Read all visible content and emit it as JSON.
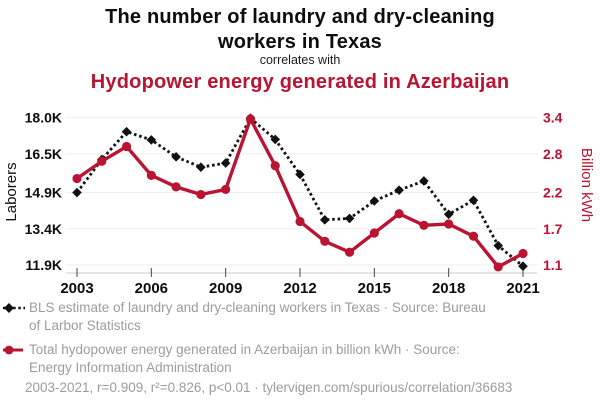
{
  "title": {
    "line1": "The number of laundry and dry-cleaning",
    "line2": "workers in Texas",
    "connector": "correlates with",
    "subtitle": "Hydopower energy generated in Azerbaijan"
  },
  "colors": {
    "accent_red": "#b91432",
    "series_black": "#111111",
    "legend_gray": "#9c9c9c",
    "gridline": "#ededed",
    "axis_line": "#cccccc",
    "tick": "#444444"
  },
  "chart_data": {
    "type": "line",
    "x": [
      2003,
      2004,
      2005,
      2006,
      2007,
      2008,
      2009,
      2010,
      2011,
      2012,
      2013,
      2014,
      2015,
      2016,
      2017,
      2018,
      2019,
      2020,
      2021
    ],
    "x_ticks": [
      2003,
      2006,
      2009,
      2012,
      2015,
      2018,
      2021
    ],
    "x_tick_labels": [
      "2003",
      "2006",
      "2009",
      "2012",
      "2015",
      "2018",
      "2021"
    ],
    "left_axis": {
      "label": "Laborers",
      "unit": "thousands of workers",
      "tick_labels": [
        "18.0K",
        "16.5K",
        "14.9K",
        "13.4K",
        "11.9K"
      ],
      "tick_values": [
        18.0,
        16.5,
        14.9,
        13.4,
        11.9
      ],
      "range": [
        11.9,
        18.0
      ]
    },
    "right_axis": {
      "label": "Billion kWh",
      "tick_labels": [
        "3.4",
        "2.8",
        "2.2",
        "1.7",
        "1.1"
      ],
      "range": [
        1.1,
        3.4
      ]
    },
    "grid": "horizontal-only",
    "legend_position": "bottom",
    "series": [
      {
        "name": "BLS estimate of laundry and dry-cleaning workers in Texas",
        "axis": "left",
        "style": "dotted-diamond",
        "color": "#111111",
        "values": [
          14.9,
          16.27,
          17.42,
          17.08,
          16.38,
          15.95,
          16.12,
          17.98,
          17.1,
          15.65,
          13.77,
          13.83,
          14.55,
          15.0,
          15.38,
          14.0,
          14.58,
          12.7,
          11.85
        ]
      },
      {
        "name": "Total hydopower energy generated in Azerbaijan",
        "axis": "right",
        "style": "solid-circle",
        "color": "#b91432",
        "values": [
          2.45,
          2.72,
          2.95,
          2.5,
          2.32,
          2.2,
          2.28,
          3.38,
          2.65,
          1.78,
          1.47,
          1.3,
          1.6,
          1.9,
          1.72,
          1.74,
          1.55,
          1.07,
          1.28
        ]
      }
    ]
  },
  "legend": {
    "entries": [
      {
        "marker": "black-diamond-dotted",
        "text": "BLS estimate of laundry and dry-cleaning workers in Texas · Source: Bureau of Larbor Statistics"
      },
      {
        "marker": "red-circle-solid",
        "text": "Total hydopower energy generated in Azerbaijan in billion kWh · Source: Energy Information Administration"
      }
    ],
    "stats": "2003-2021, r=0.909, r²=0.826, p<0.01 · tylervigen.com/spurious/correlation/36683"
  }
}
